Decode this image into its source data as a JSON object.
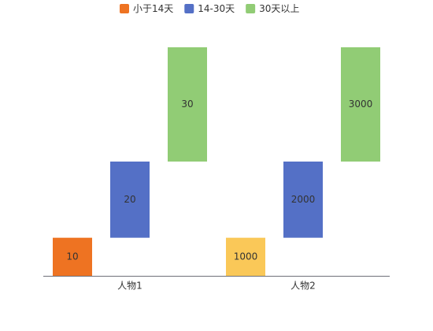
{
  "chart_data": {
    "type": "bar",
    "mode": "waterfall",
    "categories": [
      "人物1",
      "人物2"
    ],
    "series": [
      {
        "name": "小于14天",
        "color": "#ee7322",
        "point_colors": [
          "#ee7322",
          "#fac858"
        ],
        "label_color": "#333333",
        "values": [
          10,
          1000
        ]
      },
      {
        "name": "14-30天",
        "color": "#5470c6",
        "label_color": "#ffffff",
        "values": [
          20,
          2000
        ]
      },
      {
        "name": "30天以上",
        "color": "#91cc75",
        "label_color": "#333333",
        "values": [
          30,
          3000
        ]
      }
    ]
  }
}
